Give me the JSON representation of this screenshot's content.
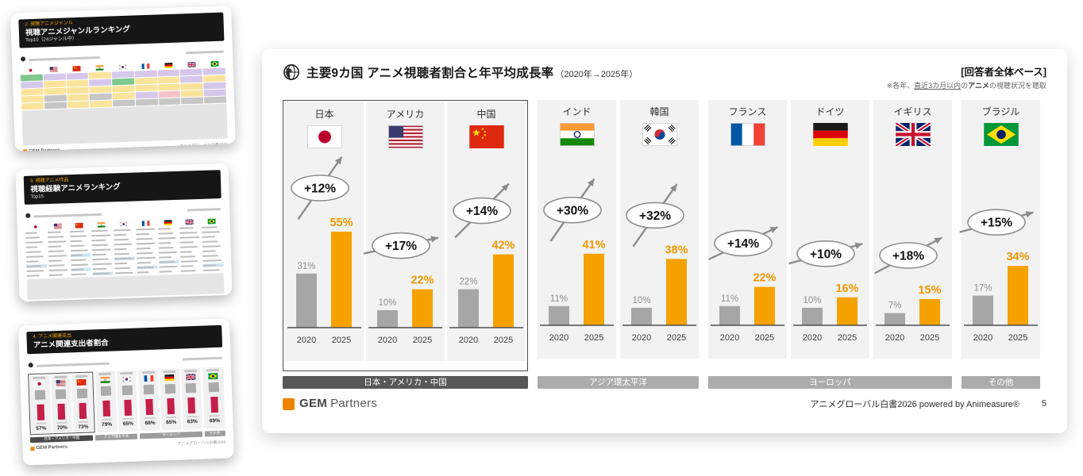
{
  "chart_data": {
    "type": "bar",
    "title": "主要9カ国 アニメ視聴者割合と年平均成長率（2020年→2025年）",
    "categories": [
      "日本",
      "アメリカ",
      "中国",
      "インド",
      "韓国",
      "フランス",
      "ドイツ",
      "イギリス",
      "ブラジル"
    ],
    "series": [
      {
        "name": "2020",
        "values": [
          31,
          10,
          22,
          11,
          10,
          11,
          10,
          7,
          17
        ]
      },
      {
        "name": "2025",
        "values": [
          55,
          22,
          42,
          41,
          38,
          22,
          16,
          15,
          34
        ]
      }
    ],
    "growth_labels": [
      "+12%",
      "+17%",
      "+14%",
      "+30%",
      "+32%",
      "+14%",
      "+10%",
      "+18%",
      "+15%"
    ],
    "unit": "%",
    "ylim": [
      0,
      60
    ],
    "grid": false,
    "legend_position": "none",
    "region_groups": [
      {
        "label": "日本・アメリカ・中国",
        "categories": [
          "日本",
          "アメリカ",
          "中国"
        ]
      },
      {
        "label": "アジア環太平洋",
        "categories": [
          "インド",
          "韓国"
        ]
      },
      {
        "label": "ヨーロッパ",
        "categories": [
          "フランス",
          "ドイツ",
          "イギリス"
        ]
      },
      {
        "label": "その他",
        "categories": [
          "ブラジル"
        ]
      }
    ]
  },
  "main_slide": {
    "header": {
      "title": "主要9カ国 アニメ視聴者割合と年平均成長率",
      "title_suffix": "（2020年→2025年）",
      "base_note": "[回答者全体ベース]",
      "method_note_parts": {
        "p1": "※各年、",
        "p2": "直近3カ月以内",
        "p3": "の",
        "p4": "アニメ",
        "p5": "の視聴状況を聴取"
      }
    },
    "years": [
      "2020",
      "2025"
    ],
    "countries": [
      {
        "name": "日本",
        "flag": "jp",
        "v2020": 31,
        "v2025": 55,
        "growth": "+12%"
      },
      {
        "name": "アメリカ",
        "flag": "us",
        "v2020": 10,
        "v2025": 22,
        "growth": "+17%"
      },
      {
        "name": "中国",
        "flag": "cn",
        "v2020": 22,
        "v2025": 42,
        "growth": "+14%"
      },
      {
        "name": "インド",
        "flag": "in",
        "v2020": 11,
        "v2025": 41,
        "growth": "+30%"
      },
      {
        "name": "韓国",
        "flag": "kr",
        "v2020": 10,
        "v2025": 38,
        "growth": "+32%"
      },
      {
        "name": "フランス",
        "flag": "fr",
        "v2020": 11,
        "v2025": 22,
        "growth": "+14%"
      },
      {
        "name": "ドイツ",
        "flag": "de",
        "v2020": 10,
        "v2025": 16,
        "growth": "+10%"
      },
      {
        "name": "イギリス",
        "flag": "gb",
        "v2020": 7,
        "v2025": 15,
        "growth": "+18%"
      },
      {
        "name": "ブラジル",
        "flag": "br",
        "v2020": 17,
        "v2025": 34,
        "growth": "+15%"
      }
    ],
    "groups": [
      {
        "label": "日本・アメリカ・中国",
        "span": 3,
        "color": "#575757",
        "bordered": true
      },
      {
        "label": "アジア環太平洋",
        "span": 2,
        "color": "#ACACAC",
        "bordered": false
      },
      {
        "label": "ヨーロッパ",
        "span": 3,
        "color": "#ACACAC",
        "bordered": false
      },
      {
        "label": "その他",
        "span": 1,
        "color": "#ACACAC",
        "bordered": false
      }
    ],
    "footer": {
      "logo_bold": "GEM",
      "logo_light": "Partners",
      "credit": "アニメグローバル白書2026 powered by Animeasure®",
      "page": "5"
    }
  },
  "thumbnails": [
    {
      "tag": "2. 視聴アニメジャンル",
      "title": "視聴アニメジャンルランキング",
      "subtitle": "Top10（24ジャンル中）",
      "grid": [
        [
          "g",
          "l",
          "l",
          "y",
          "l",
          "l",
          "l",
          "l",
          "l"
        ],
        [
          "l",
          "y",
          "y",
          "l",
          "g",
          "y",
          "y",
          "l",
          "y"
        ],
        [
          "y",
          "y",
          "y",
          "y",
          "y",
          "y",
          "y",
          "y",
          "l"
        ],
        [
          "y",
          "x",
          "y",
          "x",
          "y",
          "l",
          "p",
          "y",
          "l"
        ],
        [
          "y",
          "x",
          "y",
          "y",
          "x",
          "x",
          "x",
          "x",
          "x"
        ]
      ]
    },
    {
      "tag": "3. 視聴アニメ作品",
      "title": "視聴経験アニメランキング",
      "subtitle": "Top15"
    },
    {
      "tag": "4. アニメ関連支出",
      "title": "アニメ関連支出者割合",
      "subtitle": "",
      "percentages": [
        "57%",
        "70%",
        "73%",
        "79%",
        "65%",
        "68%",
        "65%",
        "63%",
        "69%"
      ]
    }
  ],
  "colors": {
    "bar2020": "#A6A6A6",
    "bar2025": "#F5A200",
    "value2025_text": "#F39800",
    "accent_orange": "#F08300",
    "group_dark": "#575757",
    "group_gray": "#ACACAC"
  }
}
